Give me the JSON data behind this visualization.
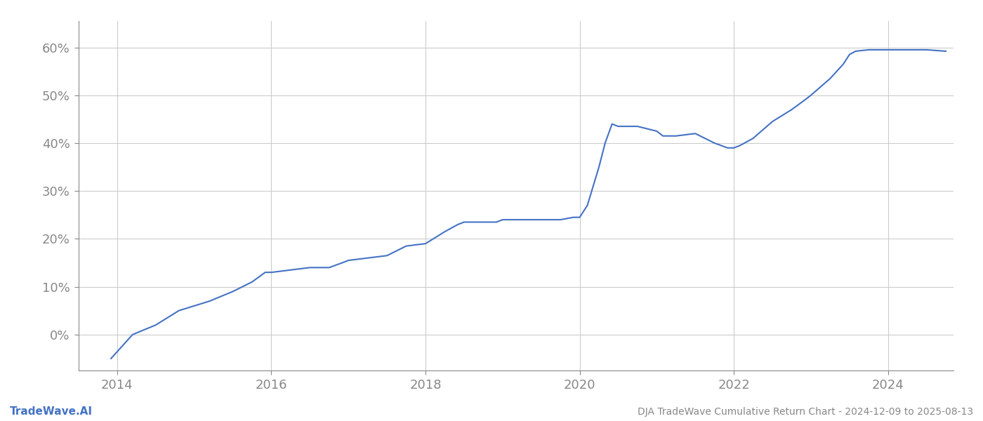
{
  "title": "DJA TradeWave Cumulative Return Chart - 2024-12-09 to 2025-08-13",
  "line_color": "#4472c4",
  "line_width": 1.5,
  "background_color": "#ffffff",
  "grid_color": "#cccccc",
  "footer_left": "TradeWave.AI",
  "footer_right": "DJA TradeWave Cumulative Return Chart - 2024-12-09 to 2025-08-13",
  "xlim": [
    2013.5,
    2024.85
  ],
  "ylim": [
    -0.075,
    0.655
  ],
  "yticks": [
    0.0,
    0.1,
    0.2,
    0.3,
    0.4,
    0.5,
    0.6
  ],
  "ytick_labels": [
    "0%",
    "10%",
    "20%",
    "30%",
    "40%",
    "50%",
    "60%"
  ],
  "xticks": [
    2014,
    2016,
    2018,
    2020,
    2022,
    2024
  ],
  "x": [
    2013.92,
    2014.2,
    2014.5,
    2014.8,
    2015.0,
    2015.2,
    2015.5,
    2015.75,
    2015.92,
    2016.0,
    2016.25,
    2016.5,
    2016.75,
    2016.92,
    2017.0,
    2017.25,
    2017.5,
    2017.75,
    2018.0,
    2018.1,
    2018.25,
    2018.42,
    2018.5,
    2018.58,
    2018.75,
    2018.92,
    2019.0,
    2019.25,
    2019.5,
    2019.75,
    2019.92,
    2020.0,
    2020.1,
    2020.25,
    2020.33,
    2020.42,
    2020.5,
    2020.75,
    2021.0,
    2021.08,
    2021.25,
    2021.5,
    2021.75,
    2021.92,
    2022.0,
    2022.08,
    2022.25,
    2022.5,
    2022.75,
    2022.92,
    2023.0,
    2023.25,
    2023.42,
    2023.5,
    2023.58,
    2023.75,
    2024.0,
    2024.25,
    2024.5,
    2024.75
  ],
  "y": [
    -0.05,
    0.0,
    0.02,
    0.05,
    0.06,
    0.07,
    0.09,
    0.11,
    0.13,
    0.13,
    0.135,
    0.14,
    0.14,
    0.15,
    0.155,
    0.16,
    0.165,
    0.185,
    0.19,
    0.2,
    0.215,
    0.23,
    0.235,
    0.235,
    0.235,
    0.235,
    0.24,
    0.24,
    0.24,
    0.24,
    0.245,
    0.245,
    0.27,
    0.35,
    0.4,
    0.44,
    0.435,
    0.435,
    0.425,
    0.415,
    0.415,
    0.42,
    0.4,
    0.39,
    0.39,
    0.395,
    0.41,
    0.445,
    0.47,
    0.49,
    0.5,
    0.535,
    0.565,
    0.585,
    0.592,
    0.595,
    0.595,
    0.595,
    0.595,
    0.592
  ]
}
